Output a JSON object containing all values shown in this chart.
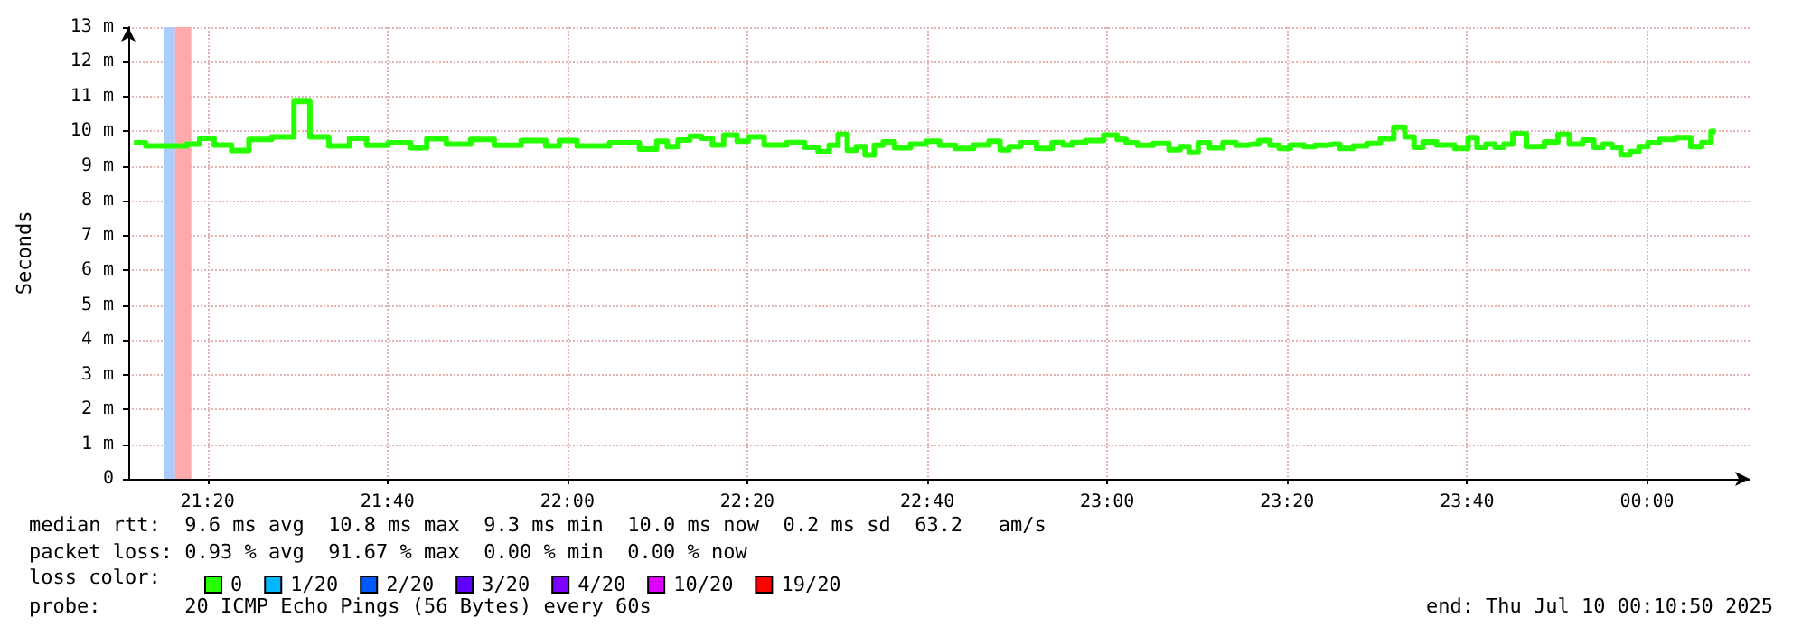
{
  "chart_data": {
    "type": "step",
    "ylabel": "Seconds",
    "legend_title": "loss color:",
    "annotations": [
      "median rtt:  9.6 ms avg  10.8 ms max  9.3 ms min  10.0 ms now  0.2 ms sd  63.2   am/s",
      "packet loss: 0.93 % avg  91.67 % max  0.00 % min  0.00 % now",
      "probe:       20 ICMP Echo Pings (56 Bytes) every 60s",
      "end: Thu Jul 10 00:10:50 2025"
    ],
    "xlim": [
      21.1867,
      24.19
    ],
    "xticks": [
      {
        "value": 21.3333,
        "label": "21:20"
      },
      {
        "value": 21.6667,
        "label": "21:40"
      },
      {
        "value": 22,
        "label": "22:00"
      },
      {
        "value": 22.3333,
        "label": "22:20"
      },
      {
        "value": 22.6667,
        "label": "22:40"
      },
      {
        "value": 23,
        "label": "23:00"
      },
      {
        "value": 23.3333,
        "label": "23:20"
      },
      {
        "value": 23.6667,
        "label": "23:40"
      },
      {
        "value": 24,
        "label": "00:00"
      }
    ],
    "ylim": [
      0,
      13
    ],
    "yticks": [
      0,
      {
        "value": 1,
        "label": "1 m"
      },
      {
        "value": 2,
        "label": "2 m"
      },
      {
        "value": 3,
        "label": "3 m"
      },
      {
        "value": 4,
        "label": "4 m"
      },
      {
        "value": 5,
        "label": "5 m"
      },
      {
        "value": 6,
        "label": "6 m"
      },
      {
        "value": 7,
        "label": "7 m"
      },
      {
        "value": 8,
        "label": "8 m"
      },
      {
        "value": 9,
        "label": "9 m"
      },
      {
        "value": 10,
        "label": "10 m"
      },
      {
        "value": 11,
        "label": "11 m"
      },
      {
        "value": 12,
        "label": "12 m"
      },
      {
        "value": 13,
        "label": "13 m"
      }
    ],
    "grid": true,
    "legend": "bottom left",
    "marker": "none",
    "line_style": "solid",
    "bands": [
      {
        "axis": "x",
        "from": 21.2533,
        "to": 21.2733,
        "color": "#aaccff"
      },
      {
        "axis": "x",
        "from": 21.2733,
        "to": 21.3033,
        "color": "#ffaaaa"
      }
    ],
    "series": [
      {
        "name": "0",
        "color": "#26ff00",
        "x": [
          21.197,
          21.241,
          21.28,
          21.31,
          21.328,
          21.363,
          21.393,
          21.427,
          21.477,
          21.51,
          21.536,
          21.58,
          21.613,
          21.643,
          21.693,
          21.727,
          21.752,
          21.799,
          21.843,
          21.886,
          21.943,
          21.977,
          21.993,
          22.043,
          22.113,
          22.154,
          22.177,
          22.193,
          22.217,
          22.237,
          22.26,
          22.277,
          22.302,
          22.327,
          22.343,
          22.386,
          22.427,
          22.452,
          22.477,
          22.493,
          22.51,
          22.527,
          22.543,
          22.56,
          22.577,
          22.593,
          22.619,
          22.652,
          22.677,
          22.702,
          22.736,
          22.769,
          22.793,
          22.81,
          22.827,
          22.852,
          22.886,
          22.91,
          22.927,
          22.943,
          22.977,
          23.01,
          23.027,
          23.043,
          23.069,
          23.102,
          23.127,
          23.143,
          23.16,
          23.177,
          23.202,
          23.227,
          23.25,
          23.269,
          23.293,
          23.31,
          23.327,
          23.352,
          23.377,
          23.393,
          23.419,
          23.443,
          23.469,
          23.493,
          23.519,
          23.543,
          23.56,
          23.577,
          23.593,
          23.627,
          23.66,
          23.677,
          23.693,
          23.71,
          23.727,
          23.743,
          23.76,
          23.793,
          23.827,
          23.843,
          23.869,
          23.893,
          23.91,
          23.927,
          23.943,
          23.96,
          23.977,
          23.993,
          24.01,
          24.036,
          24.069,
          24.093,
          24.11,
          24.127
        ],
        "values": [
          9.67,
          9.58,
          9.58,
          9.63,
          9.8,
          9.61,
          9.45,
          9.77,
          9.84,
          10.86,
          9.84,
          9.58,
          9.8,
          9.6,
          9.67,
          9.53,
          9.79,
          9.63,
          9.77,
          9.6,
          9.74,
          9.58,
          9.74,
          9.58,
          9.67,
          9.49,
          9.72,
          9.56,
          9.75,
          9.86,
          9.8,
          9.61,
          9.89,
          9.72,
          9.84,
          9.61,
          9.68,
          9.54,
          9.42,
          9.6,
          9.91,
          9.46,
          9.56,
          9.32,
          9.6,
          9.7,
          9.53,
          9.63,
          9.72,
          9.6,
          9.51,
          9.61,
          9.72,
          9.47,
          9.56,
          9.67,
          9.51,
          9.68,
          9.61,
          9.68,
          9.74,
          9.89,
          9.77,
          9.67,
          9.6,
          9.65,
          9.47,
          9.56,
          9.39,
          9.67,
          9.53,
          9.68,
          9.6,
          9.63,
          9.74,
          9.6,
          9.51,
          9.61,
          9.56,
          9.6,
          9.63,
          9.51,
          9.58,
          9.65,
          9.79,
          10.12,
          9.84,
          9.54,
          9.7,
          9.61,
          9.51,
          9.82,
          9.54,
          9.63,
          9.54,
          9.63,
          9.93,
          9.56,
          9.7,
          9.91,
          9.63,
          9.75,
          9.54,
          9.63,
          9.54,
          9.33,
          9.42,
          9.56,
          9.67,
          9.77,
          9.82,
          9.56,
          9.68,
          10.0
        ]
      },
      {
        "name": "1/20",
        "color": "#00b8ff"
      },
      {
        "name": "2/20",
        "color": "#0059ff"
      },
      {
        "name": "3/20",
        "color": "#5e00ff"
      },
      {
        "name": "4/20",
        "color": "#7e00ff"
      },
      {
        "name": "10/20",
        "color": "#dd00ff"
      },
      {
        "name": "19/20",
        "color": "#ff0000"
      }
    ]
  }
}
